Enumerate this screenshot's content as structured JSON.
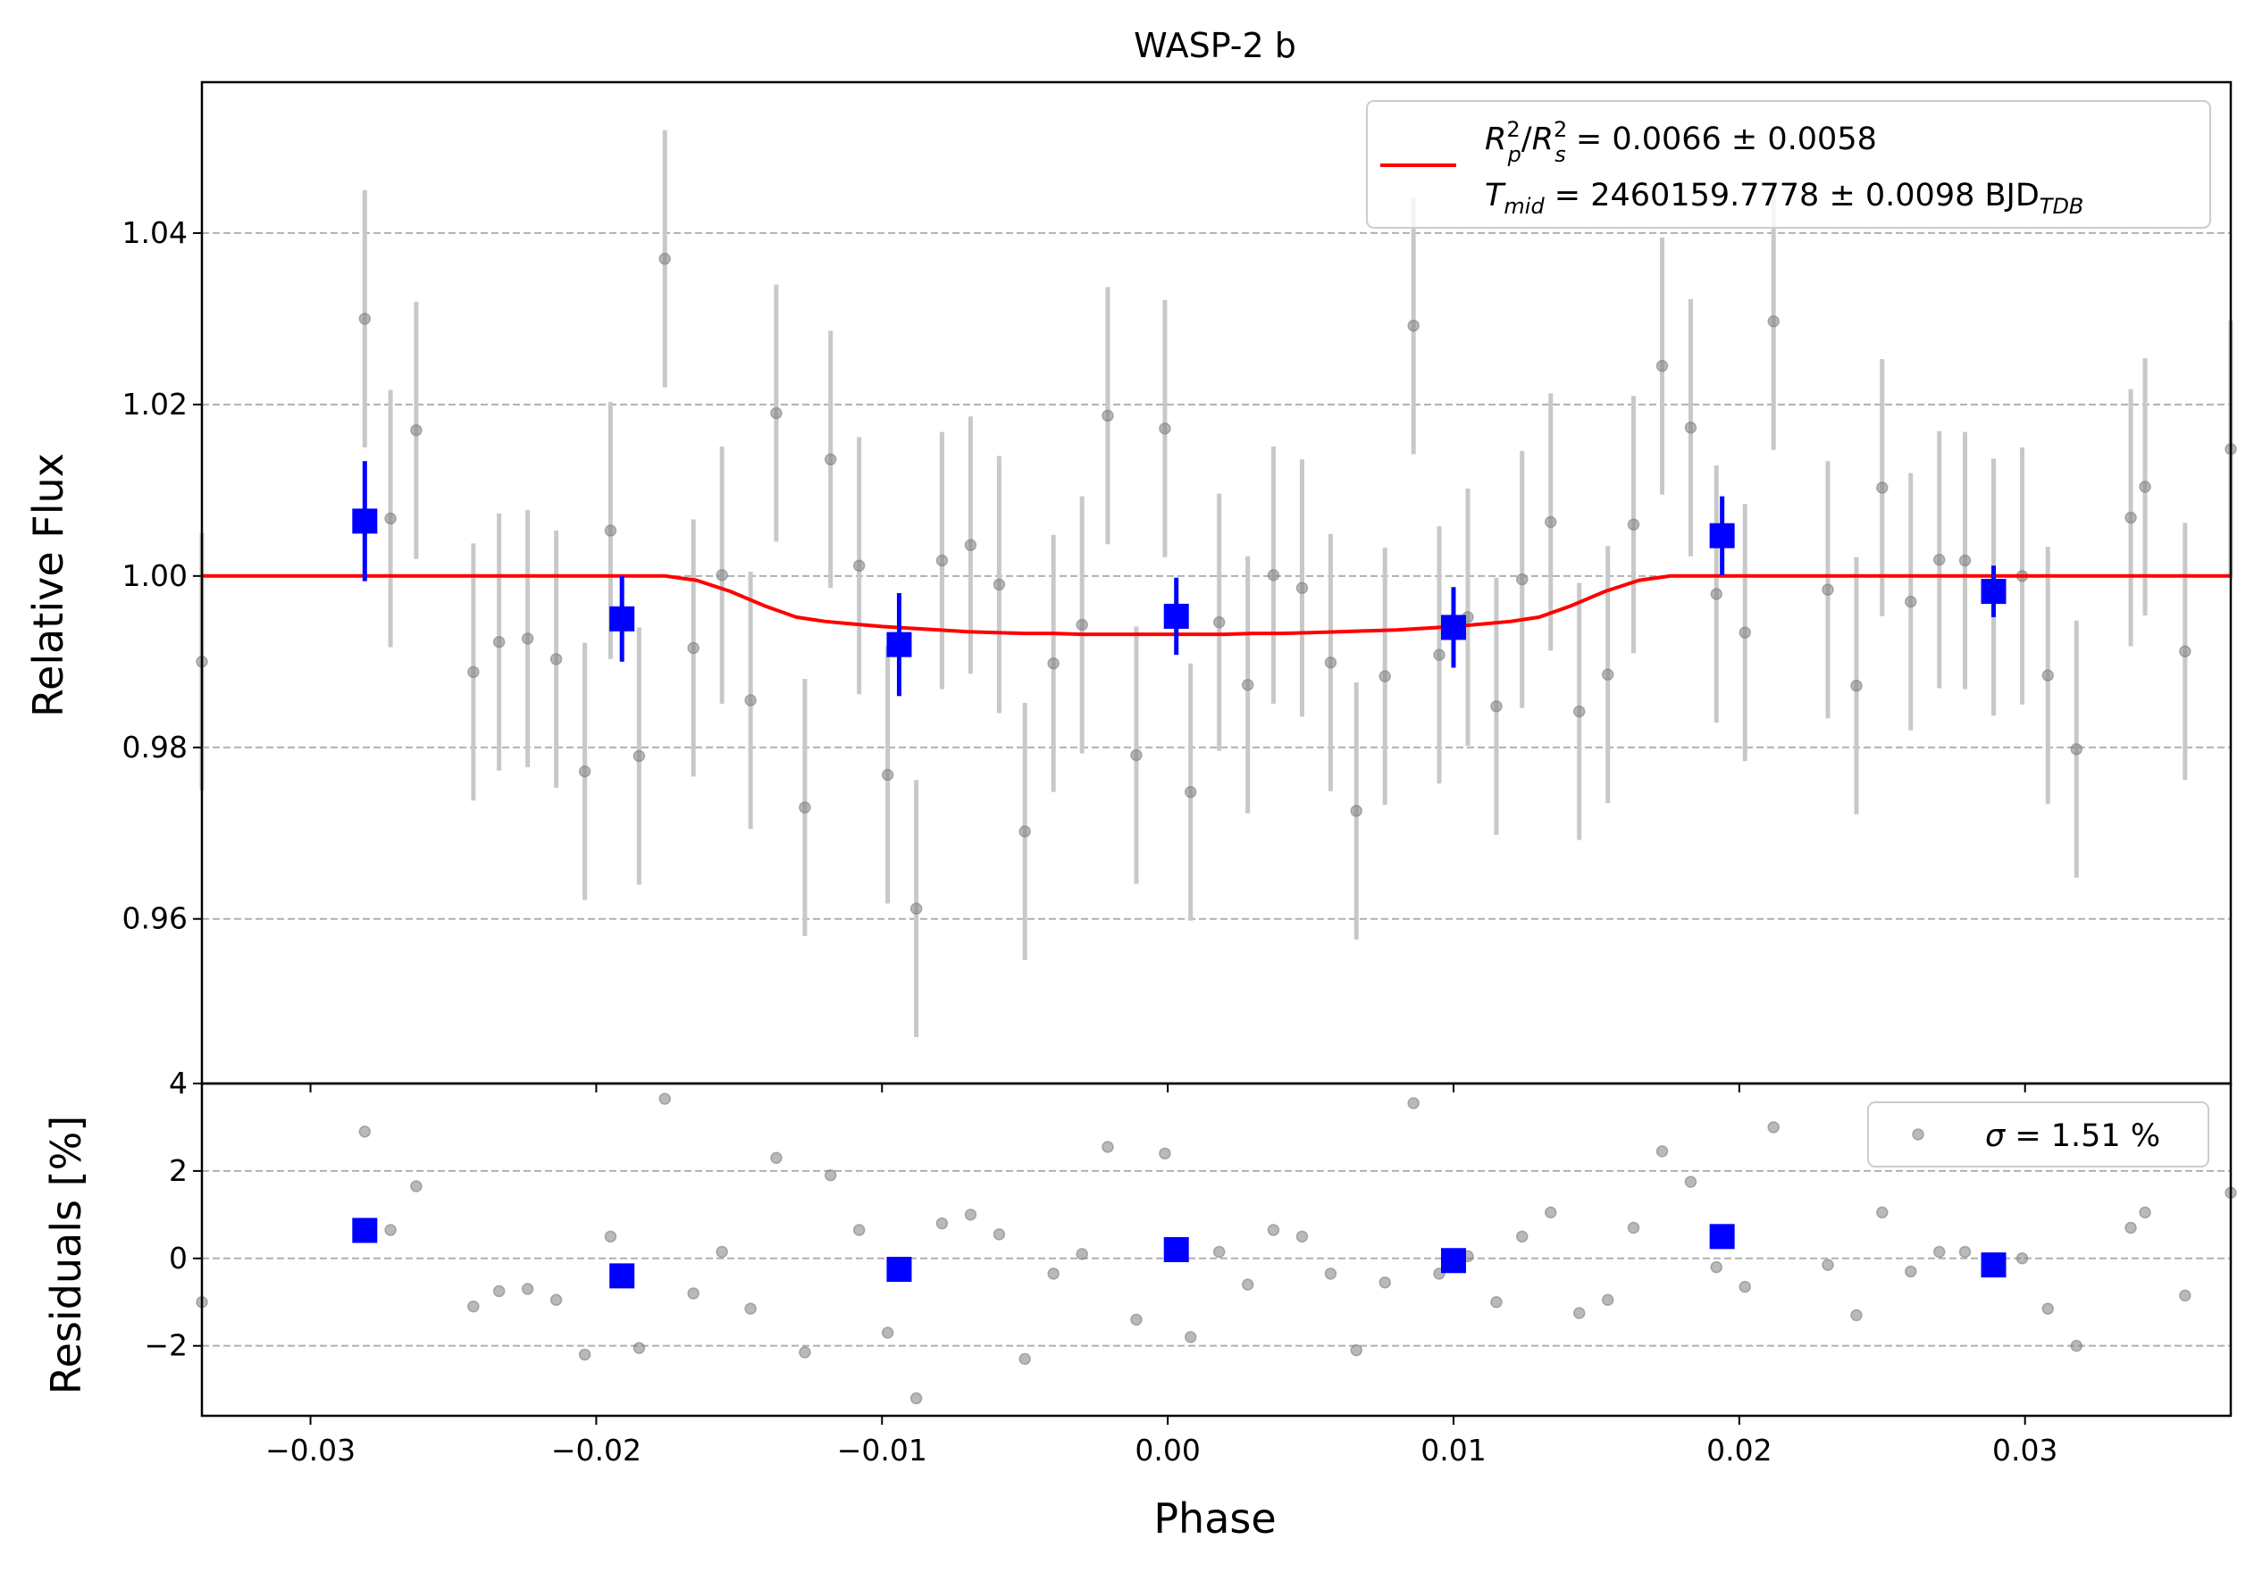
{
  "chart_data": [
    {
      "type": "scatter",
      "panel": "light-curve",
      "title": "WASP-2 b",
      "xlabel": "",
      "ylabel": "Relative Flux",
      "xlim": [
        -0.0338,
        0.0372
      ],
      "ylim": [
        0.9408,
        1.0576
      ],
      "grid": "y-dashed",
      "legend_position": "top-right",
      "x_ticks": [
        -0.03,
        -0.02,
        -0.01,
        0.0,
        0.01,
        0.02,
        0.03
      ],
      "y_ticks": [
        0.96,
        0.98,
        1.0,
        1.02,
        1.04
      ],
      "y_tick_labels": [
        "0.96",
        "0.98",
        "1.00",
        "1.02",
        "1.04"
      ],
      "legend": {
        "line1_prefix": " = 0.0066 ± 0.0058",
        "line2_mid": " = 2460159.7778 ± 0.0098 BJD",
        "line2_sub": "TDB"
      },
      "series": [
        {
          "role": "raw-data",
          "color": "#808080",
          "errorbar_color": "#c8c8c8",
          "error": 0.015,
          "x": [
            -0.0338,
            -0.0281,
            -0.0272,
            -0.0263,
            -0.0243,
            -0.0234,
            -0.0224,
            -0.0214,
            -0.0204,
            -0.0195,
            -0.0185,
            -0.0176,
            -0.0166,
            -0.0156,
            -0.0146,
            -0.0137,
            -0.0127,
            -0.0118,
            -0.0108,
            -0.0098,
            -0.0088,
            -0.0079,
            -0.0069,
            -0.0059,
            -0.005,
            -0.004,
            -0.003,
            -0.0021,
            -0.0011,
            -0.0001,
            0.0008,
            0.0018,
            0.0028,
            0.0037,
            0.0047,
            0.0057,
            0.0066,
            0.0076,
            0.0086,
            0.0095,
            0.0105,
            0.0115,
            0.0124,
            0.0134,
            0.0144,
            0.0154,
            0.0163,
            0.0173,
            0.0183,
            0.0192,
            0.0202,
            0.0212,
            0.0231,
            0.0241,
            0.025,
            0.026,
            0.027,
            0.0279,
            0.0289,
            0.0299,
            0.0308,
            0.0318,
            0.0337,
            0.0342,
            0.0356,
            0.0372
          ],
          "y": [
            0.99,
            1.03,
            1.0067,
            1.017,
            0.9888,
            0.9923,
            0.9927,
            0.9903,
            0.9772,
            1.0053,
            0.979,
            1.037,
            0.9916,
            1.0001,
            0.9855,
            1.019,
            0.973,
            1.0136,
            1.0012,
            0.9768,
            0.9612,
            1.0018,
            1.0036,
            0.999,
            0.9702,
            0.9898,
            0.9943,
            1.0187,
            0.9791,
            1.0172,
            0.9748,
            0.9946,
            0.9873,
            1.0001,
            0.9986,
            0.9899,
            0.9726,
            0.9883,
            1.0292,
            0.9908,
            0.9952,
            0.9848,
            0.9996,
            1.0063,
            0.9842,
            0.9885,
            1.006,
            1.0245,
            1.0173,
            0.9979,
            0.9934,
            1.0297,
            0.9984,
            0.9872,
            1.0103,
            0.997,
            1.0019,
            1.0018,
            0.9987,
            1.0,
            0.9884,
            0.9798,
            1.0068,
            1.0104,
            0.9912,
            1.0148
          ]
        },
        {
          "role": "binned-data",
          "color": "#0000ff",
          "x": [
            -0.0281,
            -0.0191,
            -0.0094,
            0.0003,
            0.01,
            0.0194,
            0.0289
          ],
          "y": [
            1.0064,
            0.995,
            0.992,
            0.9953,
            0.994,
            1.0047,
            0.9982
          ],
          "error": [
            0.007,
            0.005,
            0.006,
            0.0045,
            0.0047,
            0.0046,
            0.003
          ]
        },
        {
          "role": "transit-model",
          "color": "#ff0000",
          "x": [
            -0.0338,
            -0.0176,
            -0.0165,
            -0.0153,
            -0.0141,
            -0.013,
            -0.012,
            -0.011,
            -0.01,
            -0.009,
            -0.008,
            -0.007,
            -0.006,
            -0.005,
            -0.004,
            -0.003,
            -0.002,
            -0.001,
            0.0,
            0.001,
            0.002,
            0.003,
            0.004,
            0.005,
            0.006,
            0.007,
            0.008,
            0.009,
            0.01,
            0.011,
            0.012,
            0.013,
            0.0141,
            0.0153,
            0.0165,
            0.0176,
            0.0372
          ],
          "y": [
            1.0,
            1.0,
            0.9995,
            0.9982,
            0.9965,
            0.9952,
            0.9947,
            0.9944,
            0.9941,
            0.9939,
            0.9937,
            0.9935,
            0.9934,
            0.9933,
            0.9933,
            0.9932,
            0.9932,
            0.9932,
            0.9932,
            0.9932,
            0.9932,
            0.9933,
            0.9933,
            0.9934,
            0.9935,
            0.9936,
            0.9937,
            0.9939,
            0.9941,
            0.9944,
            0.9947,
            0.9952,
            0.9965,
            0.9982,
            0.9995,
            1.0,
            1.0
          ]
        }
      ]
    },
    {
      "type": "scatter",
      "panel": "residuals",
      "xlabel": "Phase",
      "ylabel": "Residuals [%]",
      "xlim": [
        -0.0338,
        0.0372
      ],
      "ylim": [
        -3.6,
        4.0
      ],
      "grid": "y-dashed",
      "legend_position": "top-right",
      "x_ticks": [
        -0.03,
        -0.02,
        -0.01,
        0.0,
        0.01,
        0.02,
        0.03
      ],
      "x_tick_labels": [
        "−0.03",
        "−0.02",
        "−0.01",
        "0.00",
        "0.01",
        "0.02",
        "0.03"
      ],
      "y_ticks": [
        -2,
        0,
        2,
        4
      ],
      "y_tick_labels": [
        "−2",
        "0",
        "2",
        "4"
      ],
      "legend": {
        "text": " = 1.51 %"
      },
      "series": [
        {
          "role": "raw-residuals",
          "color": "#808080",
          "x": [
            -0.0338,
            -0.0281,
            -0.0272,
            -0.0263,
            -0.0243,
            -0.0234,
            -0.0224,
            -0.0214,
            -0.0204,
            -0.0195,
            -0.0185,
            -0.0176,
            -0.0166,
            -0.0156,
            -0.0146,
            -0.0137,
            -0.0127,
            -0.0118,
            -0.0108,
            -0.0098,
            -0.0088,
            -0.0079,
            -0.0069,
            -0.0059,
            -0.005,
            -0.004,
            -0.003,
            -0.0021,
            -0.0011,
            -0.0001,
            0.0008,
            0.0018,
            0.0028,
            0.0037,
            0.0047,
            0.0057,
            0.0066,
            0.0076,
            0.0086,
            0.0095,
            0.0105,
            0.0115,
            0.0124,
            0.0134,
            0.0144,
            0.0154,
            0.0163,
            0.0173,
            0.0183,
            0.0192,
            0.0202,
            0.0212,
            0.0231,
            0.0241,
            0.025,
            0.026,
            0.027,
            0.0279,
            0.0289,
            0.0299,
            0.0308,
            0.0318,
            0.0337,
            0.0342,
            0.0356,
            0.0372
          ],
          "y": [
            -1.0,
            2.9,
            0.65,
            1.65,
            -1.1,
            -0.75,
            -0.7,
            -0.95,
            -2.2,
            0.5,
            -2.05,
            3.65,
            -0.8,
            0.15,
            -1.15,
            2.3,
            -2.15,
            1.9,
            0.65,
            -1.7,
            -3.2,
            0.8,
            1.0,
            0.55,
            -2.3,
            -0.35,
            0.1,
            2.55,
            -1.4,
            2.4,
            -1.8,
            0.15,
            -0.6,
            0.65,
            0.5,
            -0.35,
            -2.1,
            -0.55,
            3.55,
            -0.35,
            0.05,
            -1.0,
            0.5,
            1.05,
            -1.25,
            -0.95,
            0.7,
            2.45,
            1.75,
            -0.2,
            -0.65,
            3.0,
            -0.15,
            -1.3,
            1.05,
            -0.3,
            0.15,
            0.15,
            -0.15,
            0.0,
            -1.15,
            -2.0,
            0.7,
            1.05,
            -0.85,
            1.5
          ]
        },
        {
          "role": "binned-residuals",
          "color": "#0000ff",
          "x": [
            -0.0281,
            -0.0191,
            -0.0094,
            0.0003,
            0.01,
            0.0194,
            0.0289
          ],
          "y": [
            0.64,
            -0.4,
            -0.25,
            0.2,
            -0.05,
            0.5,
            -0.15
          ]
        }
      ]
    }
  ]
}
